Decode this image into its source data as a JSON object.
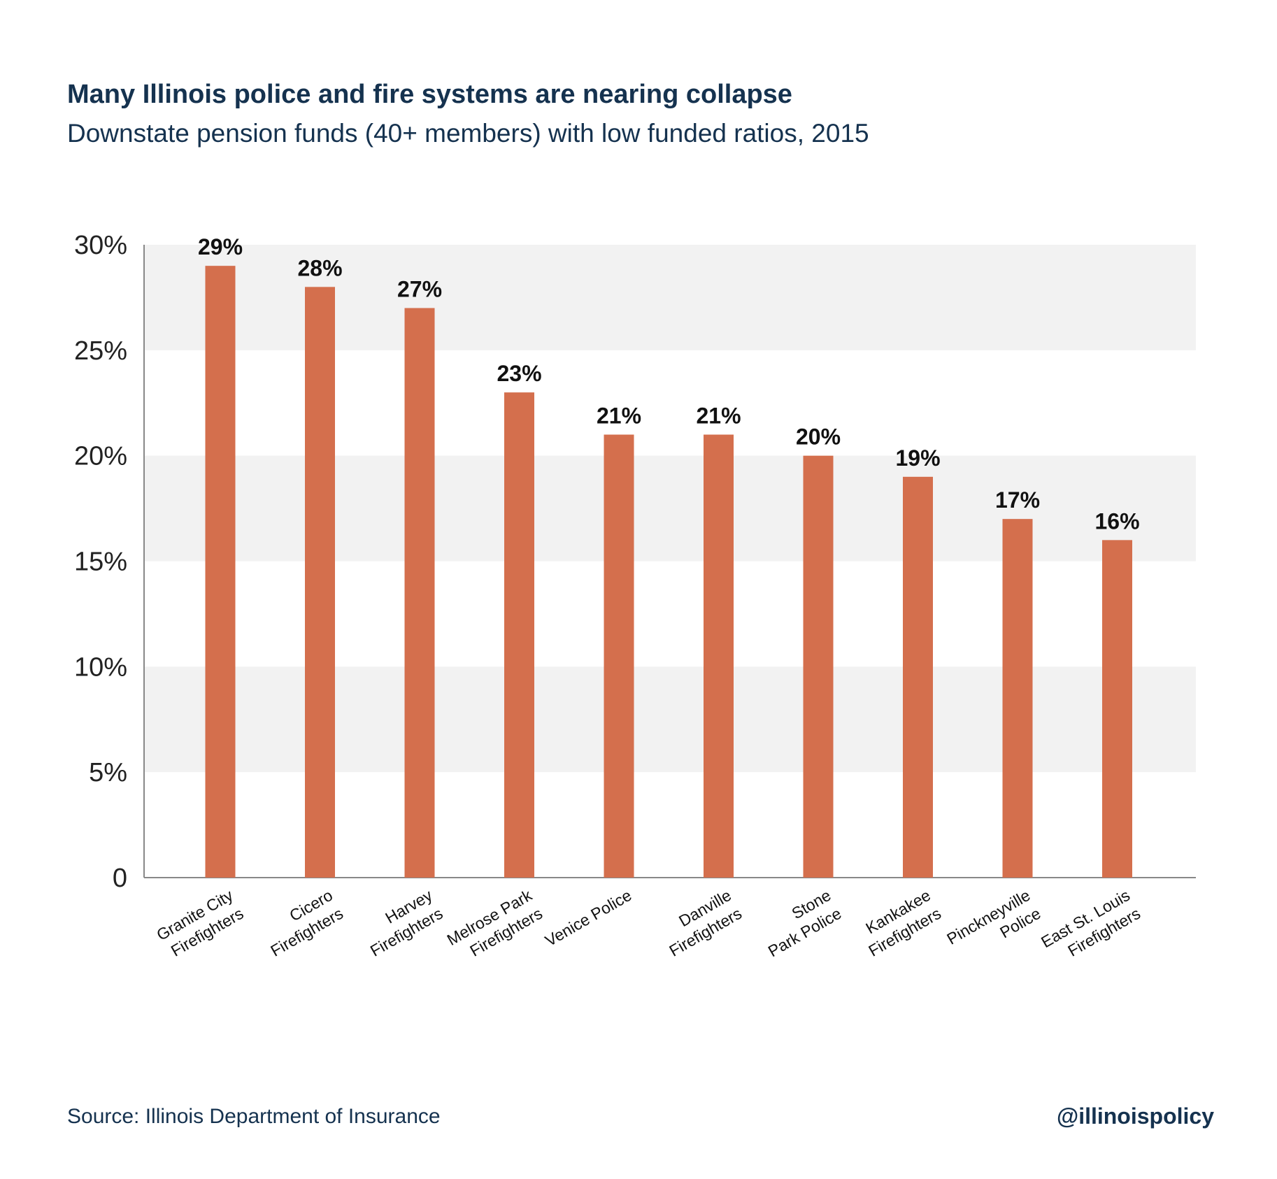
{
  "header": {
    "title": "Many Illinois police and fire systems are nearing collapse",
    "subtitle": "Downstate pension funds (40+ members) with low funded ratios, 2015"
  },
  "footer": {
    "source": "Source: Illinois Department of Insurance",
    "handle": "@illinoispolicy"
  },
  "colors": {
    "bar": "#d46f4d",
    "band": "#f2f2f2",
    "axis": "#888888",
    "text": "#15324f"
  },
  "chart_data": {
    "type": "bar",
    "categories": [
      [
        "Granite City",
        "Firefighters"
      ],
      [
        "Cicero",
        "Firefighters"
      ],
      [
        "Harvey",
        "Firefighters"
      ],
      [
        "Melrose Park",
        "Firefighters"
      ],
      [
        "Venice Police"
      ],
      [
        "Danville",
        "Firefighters"
      ],
      [
        "Stone",
        "Park Police"
      ],
      [
        "Kankakee",
        "Firefighters"
      ],
      [
        "Pinckneyville",
        "Police"
      ],
      [
        "East St. Louis",
        "Firefighters"
      ]
    ],
    "values": [
      29,
      28,
      27,
      23,
      21,
      21,
      20,
      19,
      17,
      16
    ],
    "value_labels": [
      "29%",
      "28%",
      "27%",
      "23%",
      "21%",
      "21%",
      "20%",
      "19%",
      "17%",
      "16%"
    ],
    "ylim": [
      0,
      30
    ],
    "yticks": [
      0,
      5,
      10,
      15,
      20,
      25,
      30
    ],
    "ytick_labels": [
      "0",
      "5%",
      "10%",
      "15%",
      "20%",
      "25%",
      "30%"
    ],
    "grid": "alternating horizontal bands",
    "legend": "none"
  }
}
